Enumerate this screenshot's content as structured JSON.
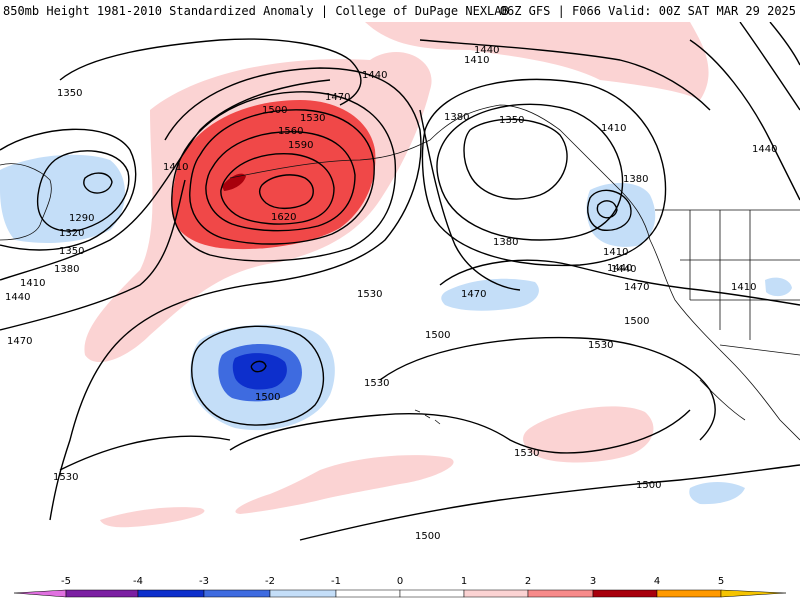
{
  "header": {
    "title": "850mb Height 1981-2010 Standardized Anomaly | College of DuPage NEXLAB",
    "run_info": "06Z GFS | F066 Valid: 00Z SAT MAR 29 2025"
  },
  "colors": {
    "neg5": "#e070e0",
    "neg4": "#7b1fa2",
    "neg3": "#0d2fcc",
    "neg2": "#3e6be0",
    "neg1": "#c4def8",
    "pos1": "#fbd3d3",
    "pos2": "#f78a8a",
    "pos3": "#f04848",
    "pos4": "#a8000c",
    "pos5": "#ff9900",
    "contour": "#000000",
    "coast": "#111111"
  },
  "contour_labels": [
    "1350",
    "1410",
    "1290",
    "1320",
    "1350",
    "1380",
    "1410",
    "1440",
    "1470",
    "1500",
    "1530",
    "1560",
    "1590",
    "1620",
    "1530",
    "1470",
    "1440",
    "1440",
    "1410",
    "1380",
    "1350",
    "1410",
    "1440",
    "1380",
    "1380",
    "1410",
    "1440",
    "1470",
    "1470",
    "1500",
    "1500",
    "1530",
    "1500",
    "1530",
    "1530",
    "1530",
    "1500",
    "1500",
    "1410",
    "1440"
  ],
  "colorbar": {
    "ticks": [
      "-5",
      "-4",
      "-3",
      "-2",
      "-1",
      "0",
      "1",
      "2",
      "3",
      "4",
      "5"
    ]
  }
}
